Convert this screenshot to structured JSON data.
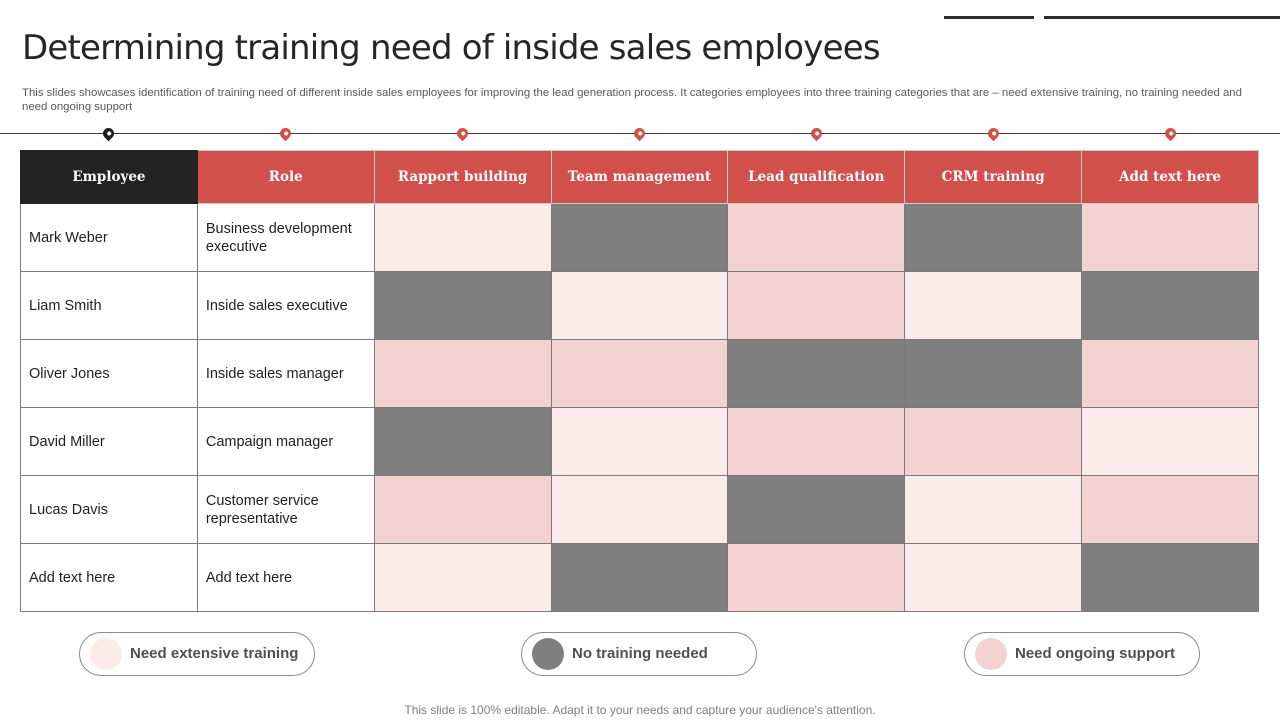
{
  "title": "Determining training need of inside sales employees",
  "subtitle": "This slides showcases identification of training need of different inside sales employees for improving the lead generation process. It categories employees into three training categories that are – need extensive training, no training needed and need ongoing support",
  "colors": {
    "accent": "#d2504b",
    "header_dark": "#232323",
    "need_extensive_training": "#fbeceb",
    "no_training_needed": "#7f7f7f",
    "need_ongoing_support": "#f2d3d2"
  },
  "table": {
    "headers": [
      "Employee",
      "Role",
      "Rapport building",
      "Team management",
      "Lead qualification",
      "CRM training",
      "Add text here"
    ],
    "rows": [
      {
        "employee": "Mark Weber",
        "role": "Business development executive",
        "cells": [
          "light",
          "dark",
          "mid",
          "dark",
          "mid"
        ]
      },
      {
        "employee": "Liam Smith",
        "role": "Inside sales executive",
        "cells": [
          "dark",
          "light",
          "mid",
          "light",
          "dark"
        ]
      },
      {
        "employee": "Oliver Jones",
        "role": "Inside sales manager",
        "cells": [
          "mid",
          "mid",
          "dark",
          "dark",
          "mid"
        ]
      },
      {
        "employee": "David Miller",
        "role": "Campaign manager",
        "cells": [
          "dark",
          "light",
          "mid",
          "mid",
          "light"
        ]
      },
      {
        "employee": "Lucas Davis",
        "role": "Customer service representative",
        "cells": [
          "mid",
          "light",
          "dark",
          "light",
          "mid"
        ]
      },
      {
        "employee": "Add text here",
        "role": "Add text here",
        "cells": [
          "light",
          "dark",
          "mid",
          "light",
          "dark"
        ]
      }
    ]
  },
  "legend": [
    {
      "label": "Need extensive training",
      "level": "light"
    },
    {
      "label": "No training needed",
      "level": "dark"
    },
    {
      "label": "Need ongoing support",
      "level": "mid"
    }
  ],
  "footer": "This slide is 100% editable. Adapt it to your needs and capture your audience's attention."
}
